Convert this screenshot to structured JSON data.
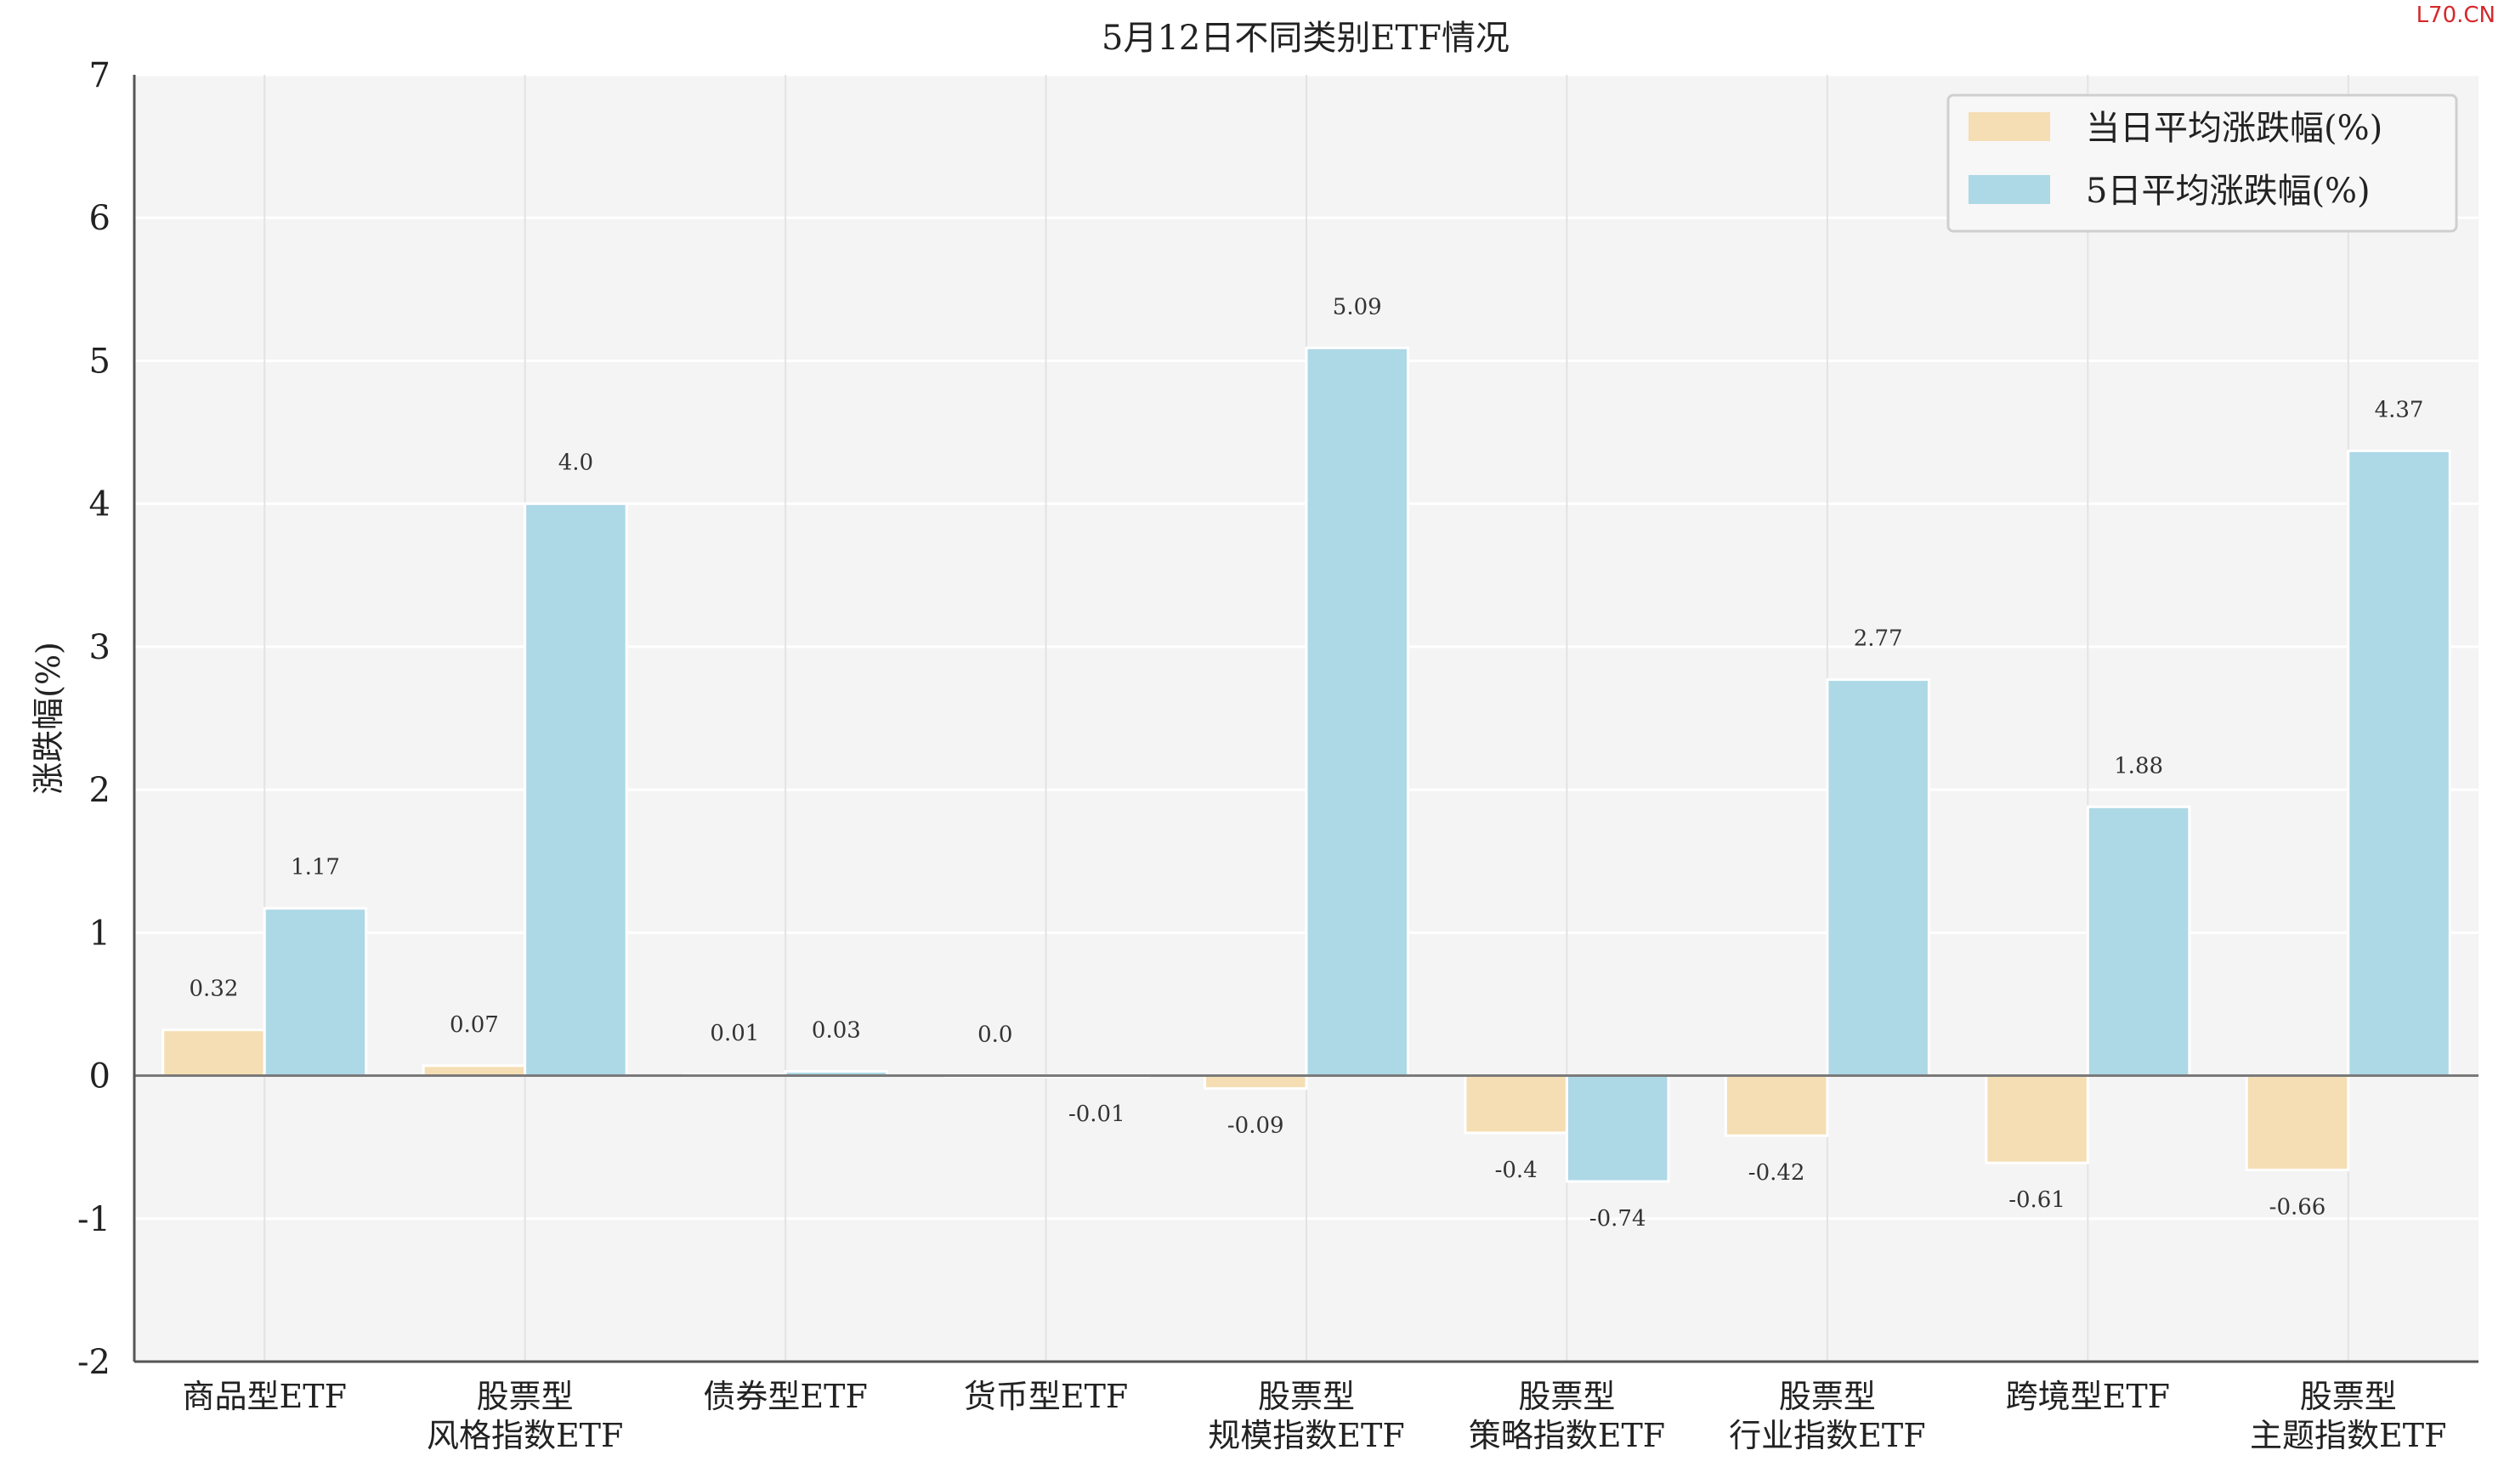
{
  "watermark": "L70.CN",
  "chart_data": {
    "type": "bar",
    "title": "5月12日不同类别ETF情况",
    "ylabel": "涨跌幅(%)",
    "xlabel": "",
    "ylim": [
      -2,
      7
    ],
    "yticks": [
      "7",
      "6",
      "5",
      "4",
      "3",
      "2",
      "1",
      "0",
      "-1",
      "-2"
    ],
    "grid": true,
    "legend_position": "top-right",
    "categories": [
      [
        "商品型ETF"
      ],
      [
        "股票型",
        "风格指数ETF"
      ],
      [
        "债券型ETF"
      ],
      [
        "货币型ETF"
      ],
      [
        "股票型",
        "规模指数ETF"
      ],
      [
        "股票型",
        "策略指数ETF"
      ],
      [
        "股票型",
        "行业指数ETF"
      ],
      [
        "跨境型ETF"
      ],
      [
        "股票型",
        "主题指数ETF"
      ]
    ],
    "series": [
      {
        "name": "当日平均涨跌幅(%)",
        "color": "#f5deb3",
        "values": [
          0.32,
          0.07,
          0.01,
          0.0,
          -0.09,
          -0.4,
          -0.42,
          -0.61,
          -0.66
        ],
        "labels": [
          "0.32",
          "0.07",
          "0.01",
          "0.0",
          "-0.09",
          "-0.4",
          "-0.42",
          "-0.61",
          "-0.66"
        ]
      },
      {
        "name": "5日平均涨跌幅(%)",
        "color": "#add8e6",
        "values": [
          1.17,
          4.0,
          0.03,
          -0.01,
          5.09,
          -0.74,
          2.77,
          1.88,
          4.37
        ],
        "labels": [
          "1.17",
          "4.0",
          "0.03",
          "-0.01",
          "5.09",
          "-0.74",
          "2.77",
          "1.88",
          "4.37"
        ]
      }
    ]
  }
}
